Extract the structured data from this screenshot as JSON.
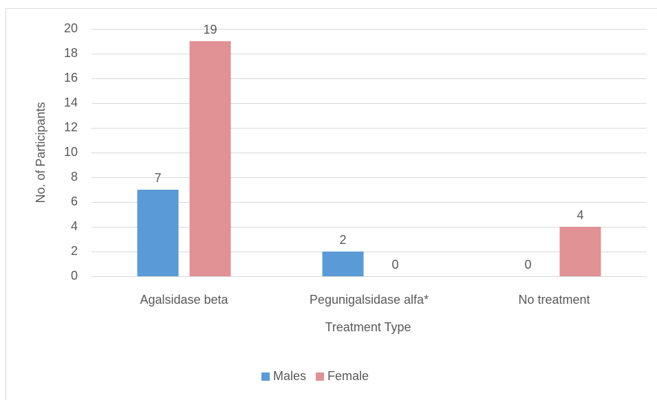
{
  "chart_data": {
    "type": "bar",
    "categories": [
      "Agalsidase beta",
      "Pegunigalsidase alfa*",
      "No treatment"
    ],
    "series": [
      {
        "name": "Males",
        "color": "#5b9bd5",
        "values": [
          7,
          2,
          0
        ]
      },
      {
        "name": "Female",
        "color": "#e09294",
        "values": [
          19,
          0,
          4
        ]
      }
    ],
    "x_label": "Treatment Type",
    "y_label": "No. of Participants",
    "ylim": [
      0,
      20
    ],
    "yticks": [
      0,
      2,
      4,
      6,
      8,
      10,
      12,
      14,
      16,
      18,
      20
    ],
    "grid": true,
    "legend": "bottom"
  }
}
